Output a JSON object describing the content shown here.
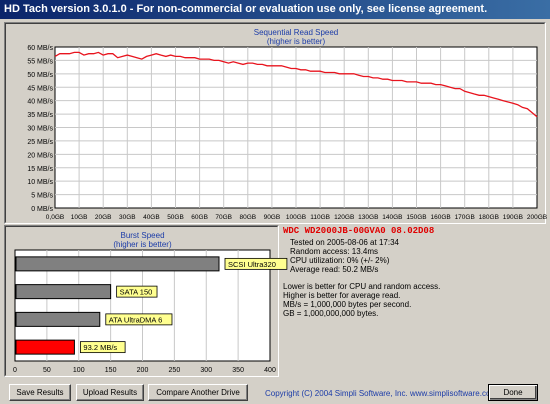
{
  "window": {
    "title": "HD Tach version 3.0.1.0  - For non-commercial or evaluation use only, see license agreement."
  },
  "read_chart": {
    "title": "Sequential Read Speed",
    "subtitle": "(higher is better)",
    "line_color": "#e8141e",
    "chart_data": {
      "type": "line",
      "title": "Sequential Read Speed",
      "subtitle": "(higher is better)",
      "y_unit": "MB/s",
      "x_unit": "GB",
      "ylim": [
        0,
        60
      ],
      "xlim": [
        0,
        200
      ],
      "y_ticks": [
        "0 MB/s",
        "5 MB/s",
        "10 MB/s",
        "15 MB/s",
        "20 MB/s",
        "25 MB/s",
        "30 MB/s",
        "35 MB/s",
        "40 MB/s",
        "45 MB/s",
        "50 MB/s",
        "55 MB/s",
        "60 MB/s"
      ],
      "x_ticks": [
        "0,0GB",
        "10GB",
        "20GB",
        "30GB",
        "40GB",
        "50GB",
        "60GB",
        "70GB",
        "80GB",
        "90GB",
        "100GB",
        "110GB",
        "120GB",
        "130GB",
        "140GB",
        "150GB",
        "160GB",
        "170GB",
        "180GB",
        "190GB",
        "200GB"
      ],
      "grid": true,
      "x": [
        0,
        2,
        4,
        6,
        8,
        10,
        12,
        14,
        16,
        18,
        20,
        22,
        24,
        26,
        28,
        30,
        32,
        34,
        36,
        38,
        40,
        42,
        44,
        46,
        48,
        50,
        52,
        54,
        56,
        58,
        60,
        62,
        64,
        66,
        68,
        70,
        72,
        74,
        76,
        78,
        80,
        82,
        84,
        86,
        88,
        90,
        92,
        94,
        96,
        98,
        100,
        102,
        104,
        106,
        108,
        110,
        112,
        114,
        116,
        118,
        120,
        122,
        124,
        126,
        128,
        130,
        132,
        134,
        136,
        138,
        140,
        142,
        144,
        146,
        148,
        150,
        152,
        154,
        156,
        158,
        160,
        162,
        164,
        166,
        168,
        170,
        172,
        174,
        176,
        178,
        180,
        182,
        184,
        186,
        188,
        190,
        192,
        194,
        196,
        198,
        200
      ],
      "y": [
        56.5,
        57.5,
        57.5,
        57.5,
        58,
        58,
        57,
        57.5,
        57.5,
        58,
        57,
        57.5,
        57.5,
        56,
        56.5,
        57,
        56.5,
        56,
        55.5,
        56.5,
        57,
        57.5,
        57,
        56.5,
        57,
        56.5,
        56.5,
        56,
        56,
        56,
        55.5,
        55.5,
        55.5,
        55,
        55,
        54.5,
        54,
        54.5,
        54,
        53.5,
        54,
        54,
        53.5,
        53.5,
        53,
        53,
        53,
        53,
        52.5,
        52,
        52,
        51.5,
        51.5,
        51,
        51,
        51,
        50.5,
        50.5,
        50.5,
        50,
        50,
        50,
        50,
        49.5,
        49,
        49,
        48.5,
        48.5,
        48,
        48,
        47.5,
        47.5,
        47.5,
        47,
        47,
        47,
        46.5,
        46.5,
        46.5,
        46,
        46,
        45.5,
        45,
        44.5,
        44.5,
        43.5,
        43,
        42.5,
        42,
        42,
        41.5,
        41,
        40.5,
        40,
        39.5,
        39,
        38.5,
        37.5,
        37,
        35.5,
        34
      ]
    }
  },
  "burst_chart": {
    "title": "Burst Speed",
    "subtitle": "(higher is better)",
    "chart_data": {
      "type": "bar",
      "orientation": "horizontal",
      "title": "Burst Speed",
      "subtitle": "(higher is better)",
      "xlim": [
        0,
        400
      ],
      "x_ticks": [
        "0",
        "50",
        "100",
        "150",
        "200",
        "250",
        "300",
        "350",
        "400"
      ],
      "categories": [
        "SCSI Ultra320",
        "SATA 150",
        "ATA UltraDMA 6",
        "93.2 MB/s"
      ],
      "values": [
        320,
        150,
        133,
        93.2
      ],
      "colors": [
        "#808080",
        "#808080",
        "#808080",
        "#ff0000"
      ],
      "label_bg": "#ffff90"
    }
  },
  "info": {
    "drive_name": "WDC WD2000JB-00GVA0 08.02D08",
    "tested_on": "Tested on 2005-08-06 at 17:34",
    "random_access": "Random access: 13.4ms",
    "cpu_utilization": "CPU utilization: 0% (+/- 2%)",
    "average_read": "Average read: 50.2 MB/s",
    "notes": [
      "Lower is better for CPU and random access.",
      "Higher is better for average read.",
      "MB/s = 1,000,000 bytes per second.",
      "GB = 1,000,000,000 bytes."
    ]
  },
  "buttons": {
    "save": "Save Results",
    "upload": "Upload Results",
    "compare": "Compare Another Drive",
    "done": "Done"
  },
  "copyright": "Copyright (C) 2004 Simpli Software, Inc. www.simplisoftware.com"
}
